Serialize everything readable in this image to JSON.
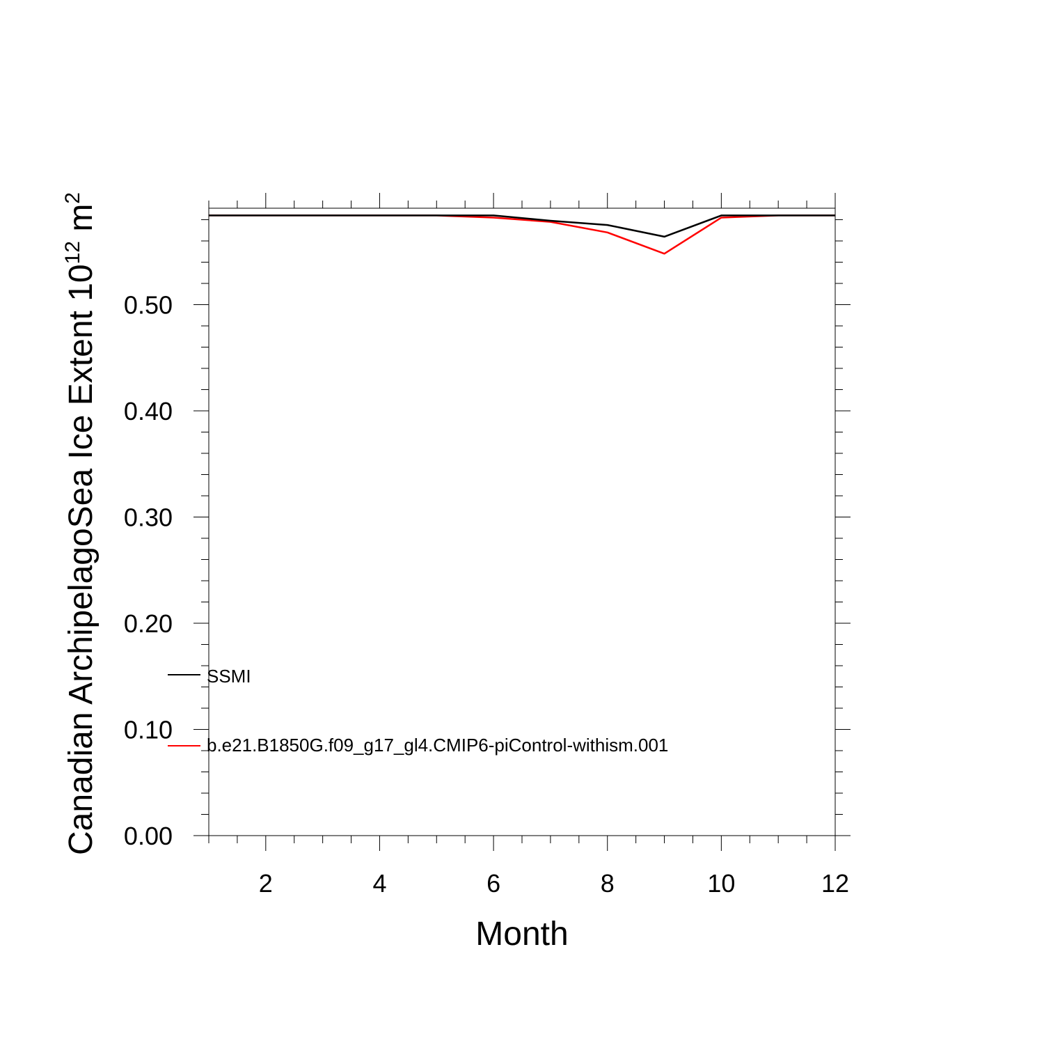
{
  "chart_data": {
    "type": "line",
    "xlabel": "Month",
    "ylabel": {
      "prefix": "Canadian ArchipelagoSea Ice Extent 10",
      "exp1": "12",
      "unit": " m",
      "exp2": "2"
    },
    "xlim": [
      1,
      12
    ],
    "ylim": [
      0,
      0.59
    ],
    "x_ticks": [
      2,
      4,
      6,
      8,
      10,
      12
    ],
    "x_tick_labels": [
      "2",
      "4",
      "6",
      "8",
      "10",
      "12"
    ],
    "y_ticks": [
      0,
      0.1,
      0.2,
      0.3,
      0.4,
      0.5
    ],
    "y_tick_labels": [
      "0.00",
      "0.10",
      "0.20",
      "0.30",
      "0.40",
      "0.50"
    ],
    "grid": false,
    "legend_position": "lower-left",
    "x": [
      1,
      2,
      3,
      4,
      5,
      6,
      7,
      8,
      9,
      10,
      11,
      12
    ],
    "series": [
      {
        "name": "SSMI",
        "color": "#000000",
        "values": [
          0.584,
          0.584,
          0.584,
          0.584,
          0.584,
          0.584,
          0.579,
          0.575,
          0.564,
          0.584,
          0.584,
          0.584
        ]
      },
      {
        "name": "b.e21.B1850G.f09_g17_gl4.CMIP6-piControl-withism.001",
        "color": "#ff0000",
        "values": [
          0.584,
          0.584,
          0.584,
          0.584,
          0.584,
          0.582,
          0.578,
          0.568,
          0.548,
          0.582,
          0.584,
          0.584
        ]
      }
    ]
  }
}
